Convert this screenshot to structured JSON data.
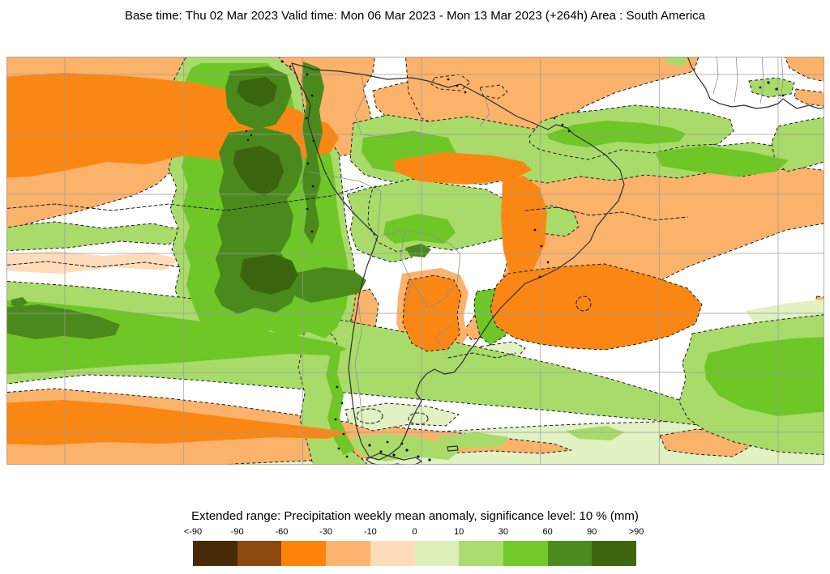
{
  "header": {
    "title": "Base time: Thu 02 Mar 2023 Valid time: Mon 06 Mar 2023 - Mon 13 Mar 2023 (+264h) Area : South America"
  },
  "legend": {
    "title": "Extended range: Precipitation weekly mean anomaly, significance level: 10 % (mm)",
    "ticks": [
      "<-90",
      "-90",
      "-60",
      "-30",
      "-10",
      "0",
      "10",
      "30",
      "60",
      "90",
      ">90"
    ],
    "colors": [
      "#472a06",
      "#8c4a10",
      "#fd8408",
      "#fcb46e",
      "#fedcba",
      "#ddf0ba",
      "#abdc6e",
      "#72c928",
      "#4c8b1e",
      "#3e660f"
    ]
  },
  "chart_data": {
    "type": "heatmap",
    "title": "Extended range: Precipitation weekly mean anomaly, significance level: 10 % (mm)",
    "base_time": "Thu 02 Mar 2023",
    "valid_time_start": "Mon 06 Mar 2023",
    "valid_time_end": "Mon 13 Mar 2023",
    "lead_time": "+264h",
    "area": "South America",
    "units": "mm",
    "significance_level": "10 %",
    "scale_breaks": [
      -90,
      -60,
      -30,
      -10,
      0,
      10,
      30,
      60,
      90
    ],
    "scale_open_ended": true,
    "legend_labels": [
      "<-90",
      "-90",
      "-60",
      "-30",
      "-10",
      "0",
      "10",
      "30",
      "60",
      "90",
      ">90"
    ],
    "palette": [
      "#472a06",
      "#8c4a10",
      "#fd8408",
      "#fcb46e",
      "#fedcba",
      "#ddf0ba",
      "#abdc6e",
      "#72c928",
      "#4c8b1e",
      "#3e660f"
    ],
    "contour_style": "dashed black lines mark the significance boundaries of anomaly regions",
    "grid": true,
    "notable_regions": [
      {
        "area": "Eastern tropical Pacific off Colombia / Ecuador / Peru",
        "anomaly_mm": ">90 (wet)"
      },
      {
        "area": "NE tropical Pacific band (top-left)",
        "anomaly_mm": "-60 to -30 (dry)"
      },
      {
        "area": "Northern Amazon / Guyanas band",
        "anomaly_mm": "10 to 60 (wet)"
      },
      {
        "area": "Equatorial Atlantic lens",
        "anomaly_mm": "30 to 60 (wet)"
      },
      {
        "area": "Northeast Brazil coast and western tropical Atlantic",
        "anomaly_mm": "-60 to -30 (dry)"
      },
      {
        "area": "Central Brazil (Mato Grosso)",
        "anomaly_mm": "30 to 60 (wet)"
      },
      {
        "area": "Uruguay / Rio de la Plata",
        "anomaly_mm": "-60 to -30 (dry)"
      },
      {
        "area": "Subtropical South Atlantic high region",
        "anomaly_mm": "-60 to -30 (dry)"
      },
      {
        "area": "South Pacific storm-track band toward Chile",
        "anomaly_mm": "60 to 90 (wet)"
      },
      {
        "area": "Patagonian Andes / Tierra del Fuego",
        "anomaly_mm": "30 to 60 (wet)"
      },
      {
        "area": "Mid-latitude South Atlantic toward Africa",
        "anomaly_mm": "30 to 60 (wet)"
      },
      {
        "area": "Southern Ocean fringe (bottom of map)",
        "anomaly_mm": "0 to 10"
      }
    ]
  }
}
